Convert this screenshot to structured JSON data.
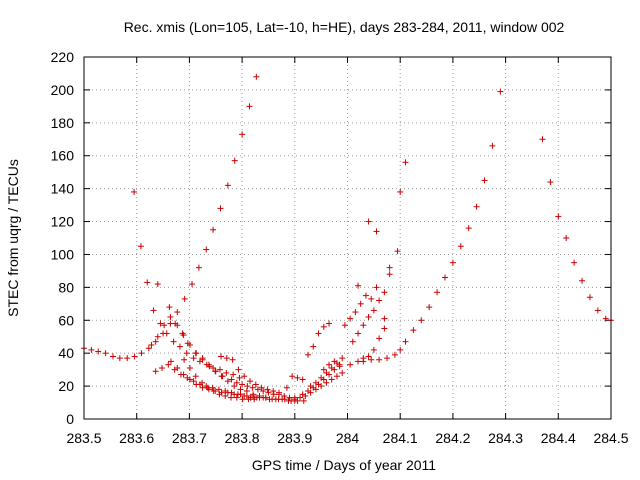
{
  "chart_data": {
    "type": "scatter",
    "title": "Rec. xmis (Lon=105, Lat=-10, h=HE), days 283-284, 2011, window 002",
    "xlabel": "GPS time / Days of year 2011",
    "ylabel": "STEC from uqrg / TECUs",
    "xlim": [
      283.5,
      284.5
    ],
    "ylim": [
      0,
      220
    ],
    "xticks": [
      283.5,
      283.6,
      283.7,
      283.8,
      283.9,
      284.0,
      284.1,
      284.2,
      284.3,
      284.4,
      284.5
    ],
    "xtick_labels": [
      "283.5",
      "283.6",
      "283.7",
      "283.8",
      "283.9",
      "284",
      "284.1",
      "284.2",
      "284.3",
      "284.4",
      "284.5"
    ],
    "yticks": [
      0,
      20,
      40,
      60,
      80,
      100,
      120,
      140,
      160,
      180,
      200,
      220
    ],
    "ytick_labels": [
      "0",
      "20",
      "40",
      "60",
      "80",
      "100",
      "120",
      "140",
      "160",
      "180",
      "200",
      "220"
    ],
    "grid": true,
    "marker": "+",
    "color": "#cc0000",
    "series": [
      {
        "points": [
          [
            283.5,
            43
          ],
          [
            283.514,
            42
          ],
          [
            283.527,
            41
          ],
          [
            283.541,
            40
          ],
          [
            283.555,
            38
          ],
          [
            283.568,
            37
          ],
          [
            283.582,
            37
          ],
          [
            283.596,
            38
          ],
          [
            283.609,
            40
          ],
          [
            283.623,
            43
          ],
          [
            283.636,
            47
          ],
          [
            283.65,
            52
          ],
          [
            283.664,
            58
          ],
          [
            283.677,
            65
          ],
          [
            283.691,
            73
          ],
          [
            283.705,
            82
          ],
          [
            283.718,
            92
          ],
          [
            283.732,
            103
          ],
          [
            283.745,
            115
          ],
          [
            283.759,
            128
          ],
          [
            283.773,
            142
          ],
          [
            283.786,
            157
          ],
          [
            283.8,
            173
          ],
          [
            283.814,
            190
          ],
          [
            283.827,
            208
          ],
          [
            283.595,
            138
          ],
          [
            283.608,
            105
          ],
          [
            283.62,
            83
          ],
          [
            283.632,
            66
          ],
          [
            283.645,
            58
          ],
          [
            283.657,
            52
          ],
          [
            283.67,
            47
          ],
          [
            283.682,
            44
          ],
          [
            283.695,
            40
          ],
          [
            283.708,
            37
          ],
          [
            283.72,
            35
          ],
          [
            283.733,
            33
          ],
          [
            283.745,
            31
          ],
          [
            283.758,
            30
          ],
          [
            283.77,
            28
          ],
          [
            283.783,
            27
          ],
          [
            283.795,
            25
          ],
          [
            283.64,
            82
          ],
          [
            283.662,
            68
          ],
          [
            283.673,
            58
          ],
          [
            283.687,
            52
          ],
          [
            283.697,
            46
          ],
          [
            283.712,
            40
          ],
          [
            283.725,
            36
          ],
          [
            283.738,
            32
          ],
          [
            283.75,
            29
          ],
          [
            283.763,
            26
          ],
          [
            283.628,
            45
          ],
          [
            283.64,
            50
          ],
          [
            283.652,
            57
          ],
          [
            283.664,
            62
          ],
          [
            283.677,
            57
          ],
          [
            283.689,
            51
          ],
          [
            283.701,
            45
          ],
          [
            283.713,
            40
          ],
          [
            283.725,
            37
          ],
          [
            283.737,
            33
          ],
          [
            283.749,
            29
          ],
          [
            283.761,
            26
          ],
          [
            283.773,
            23
          ],
          [
            283.785,
            20
          ],
          [
            283.797,
            18
          ],
          [
            283.809,
            17
          ],
          [
            283.821,
            15
          ],
          [
            283.833,
            14
          ],
          [
            283.845,
            13
          ],
          [
            283.636,
            29
          ],
          [
            283.648,
            31
          ],
          [
            283.66,
            33
          ],
          [
            283.672,
            30
          ],
          [
            283.684,
            27
          ],
          [
            283.696,
            25
          ],
          [
            283.708,
            23
          ],
          [
            283.72,
            21
          ],
          [
            283.732,
            20
          ],
          [
            283.744,
            19
          ],
          [
            283.756,
            18
          ],
          [
            283.768,
            17
          ],
          [
            283.78,
            16
          ],
          [
            283.792,
            15
          ],
          [
            283.804,
            14
          ],
          [
            283.816,
            13
          ],
          [
            283.828,
            13
          ],
          [
            283.84,
            13
          ],
          [
            283.852,
            12
          ],
          [
            283.864,
            12
          ],
          [
            283.876,
            12
          ],
          [
            283.888,
            11
          ],
          [
            283.9,
            11
          ],
          [
            283.665,
            35
          ],
          [
            283.677,
            31
          ],
          [
            283.689,
            27
          ],
          [
            283.701,
            24
          ],
          [
            283.713,
            21
          ],
          [
            283.725,
            19
          ],
          [
            283.737,
            18
          ],
          [
            283.749,
            17
          ],
          [
            283.761,
            16
          ],
          [
            283.773,
            16
          ],
          [
            283.785,
            15
          ],
          [
            283.797,
            15
          ],
          [
            283.809,
            14
          ],
          [
            283.821,
            14
          ],
          [
            283.833,
            13
          ],
          [
            283.845,
            13
          ],
          [
            283.857,
            12
          ],
          [
            283.869,
            12
          ],
          [
            283.881,
            12
          ],
          [
            283.893,
            11
          ],
          [
            283.905,
            11
          ],
          [
            283.917,
            11
          ],
          [
            283.69,
            36
          ],
          [
            283.701,
            31
          ],
          [
            283.712,
            26
          ],
          [
            283.724,
            22
          ],
          [
            283.735,
            19
          ],
          [
            283.746,
            17
          ],
          [
            283.757,
            15
          ],
          [
            283.768,
            14
          ],
          [
            283.779,
            13
          ],
          [
            283.79,
            13
          ],
          [
            283.801,
            12
          ],
          [
            283.812,
            12
          ],
          [
            283.823,
            12
          ],
          [
            283.76,
            38
          ],
          [
            283.771,
            37
          ],
          [
            283.782,
            36
          ],
          [
            283.793,
            30
          ],
          [
            283.804,
            26
          ],
          [
            283.815,
            23
          ],
          [
            283.826,
            21
          ],
          [
            283.837,
            19
          ],
          [
            283.848,
            18
          ],
          [
            283.859,
            17
          ],
          [
            283.87,
            16
          ],
          [
            283.78,
            24
          ],
          [
            283.79,
            22
          ],
          [
            283.8,
            21
          ],
          [
            283.81,
            20
          ],
          [
            283.82,
            19
          ],
          [
            283.83,
            18
          ],
          [
            283.84,
            17
          ],
          [
            283.85,
            16
          ],
          [
            283.86,
            15
          ],
          [
            283.87,
            15
          ],
          [
            283.88,
            14
          ],
          [
            283.89,
            13
          ],
          [
            283.9,
            13
          ],
          [
            283.885,
            19
          ],
          [
            283.895,
            26
          ],
          [
            283.905,
            25
          ],
          [
            283.915,
            24
          ],
          [
            283.925,
            39
          ],
          [
            283.935,
            44
          ],
          [
            283.945,
            52
          ],
          [
            283.955,
            56
          ],
          [
            283.965,
            58
          ],
          [
            283.9,
            12
          ],
          [
            283.91,
            13
          ],
          [
            283.92,
            14
          ],
          [
            283.93,
            16
          ],
          [
            283.94,
            18
          ],
          [
            283.95,
            20
          ],
          [
            283.96,
            22
          ],
          [
            283.97,
            24
          ],
          [
            283.98,
            26
          ],
          [
            283.99,
            28
          ],
          [
            283.915,
            15
          ],
          [
            283.925,
            17
          ],
          [
            283.935,
            19
          ],
          [
            283.945,
            21
          ],
          [
            283.955,
            24
          ],
          [
            283.965,
            27
          ],
          [
            283.975,
            30
          ],
          [
            283.985,
            33
          ],
          [
            283.93,
            20
          ],
          [
            283.94,
            22
          ],
          [
            283.95,
            25
          ],
          [
            283.96,
            28
          ],
          [
            283.97,
            31
          ],
          [
            283.98,
            34
          ],
          [
            283.99,
            37
          ],
          [
            283.955,
            30
          ],
          [
            283.965,
            33
          ],
          [
            283.975,
            35
          ],
          [
            283.985,
            32
          ],
          [
            283.995,
            57
          ],
          [
            284.005,
            61
          ],
          [
            284.015,
            65
          ],
          [
            284.025,
            70
          ],
          [
            284.035,
            75
          ],
          [
            284.045,
            73
          ],
          [
            284.055,
            80
          ],
          [
            284.01,
            47
          ],
          [
            284.02,
            52
          ],
          [
            284.03,
            57
          ],
          [
            284.04,
            62
          ],
          [
            284.05,
            66
          ],
          [
            284.06,
            72
          ],
          [
            284.07,
            77
          ],
          [
            284.08,
            88
          ],
          [
            284.02,
            81
          ],
          [
            284.04,
            120
          ],
          [
            284.055,
            114
          ],
          [
            284.07,
            61
          ],
          [
            284.08,
            92
          ],
          [
            284.095,
            102
          ],
          [
            284.1,
            138
          ],
          [
            284.11,
            156
          ],
          [
            284.005,
            33
          ],
          [
            284.02,
            35
          ],
          [
            284.03,
            37
          ],
          [
            284.04,
            38
          ],
          [
            284.05,
            42
          ],
          [
            284.06,
            49
          ],
          [
            284.07,
            55
          ],
          [
            284.03,
            35
          ],
          [
            284.045,
            36
          ],
          [
            284.06,
            36
          ],
          [
            284.075,
            37
          ],
          [
            284.09,
            39
          ],
          [
            284.1,
            42
          ],
          [
            284.11,
            47
          ],
          [
            284.125,
            54
          ],
          [
            284.14,
            60
          ],
          [
            284.155,
            68
          ],
          [
            284.17,
            77
          ],
          [
            284.185,
            86
          ],
          [
            284.2,
            95
          ],
          [
            284.215,
            105
          ],
          [
            284.23,
            116
          ],
          [
            284.245,
            129
          ],
          [
            284.26,
            145
          ],
          [
            284.275,
            166
          ],
          [
            284.29,
            199
          ],
          [
            284.37,
            170
          ],
          [
            284.385,
            144
          ],
          [
            284.4,
            123
          ],
          [
            284.415,
            110
          ],
          [
            284.43,
            95
          ],
          [
            284.445,
            84
          ],
          [
            284.46,
            74
          ],
          [
            284.475,
            66
          ],
          [
            284.49,
            61
          ],
          [
            284.5,
            60
          ]
        ]
      }
    ]
  }
}
